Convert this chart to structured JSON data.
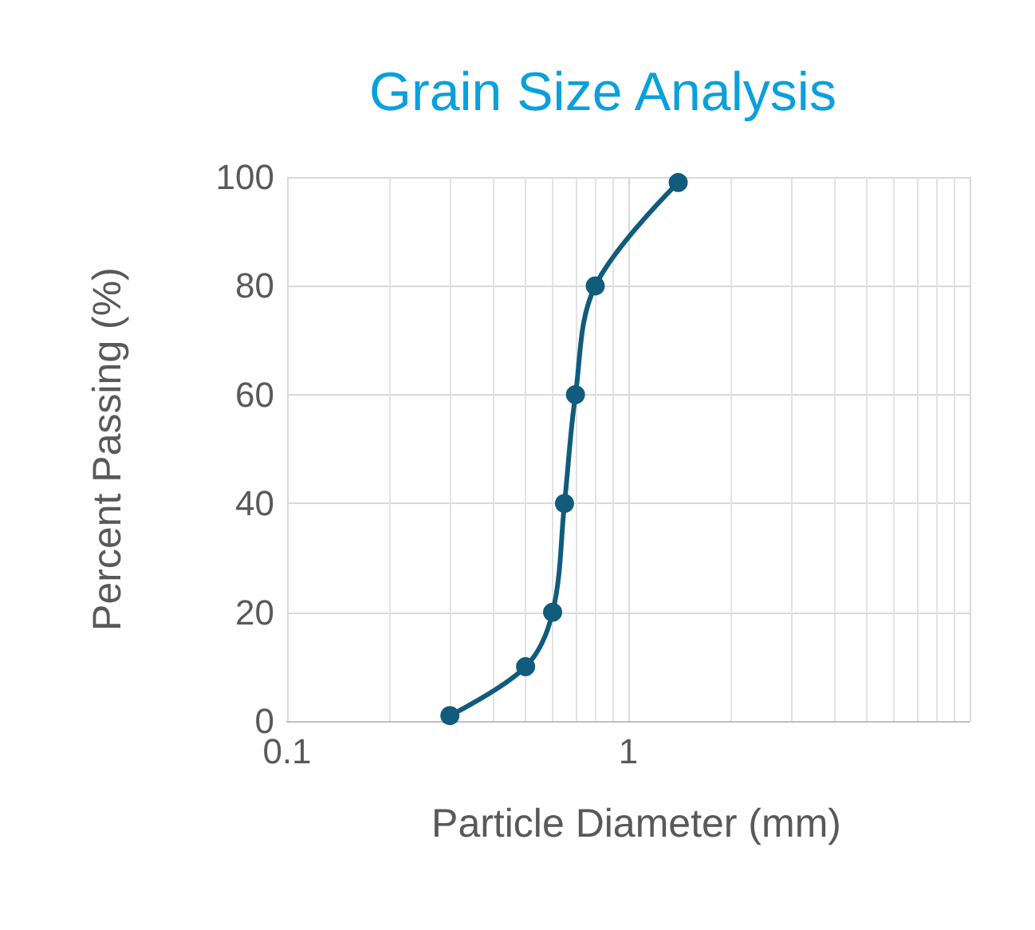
{
  "chart_data": {
    "type": "line",
    "title": "Grain Size Analysis",
    "xlabel": "Particle Diameter (mm)",
    "ylabel": "Percent Passing (%)",
    "log": "x",
    "xlim": [
      0.1,
      10
    ],
    "xticks": [
      0.1,
      1
    ],
    "ylim": [
      0,
      100
    ],
    "yticks": [
      0,
      20,
      40,
      60,
      80,
      100
    ],
    "grid": true,
    "marker": "circle",
    "line_style": "solid",
    "x": [
      0.3,
      0.5,
      0.6,
      0.65,
      0.7,
      0.8,
      1.4
    ],
    "series": [
      {
        "color": "#115b7c",
        "values": [
          1,
          10,
          20,
          40,
          60,
          80,
          99
        ]
      }
    ]
  }
}
